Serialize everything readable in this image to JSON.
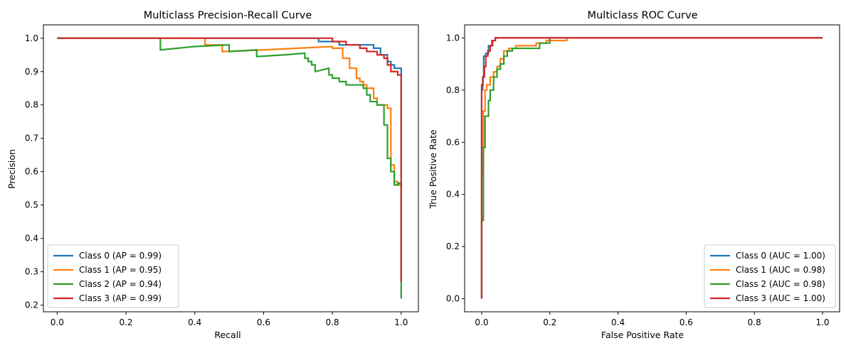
{
  "chart_data": [
    {
      "type": "line",
      "title": "Multiclass Precision-Recall Curve",
      "xlabel": "Recall",
      "ylabel": "Precision",
      "xlim": [
        -0.04,
        1.05
      ],
      "ylim": [
        0.18,
        1.04
      ],
      "xticks": [
        "0.0",
        "0.2",
        "0.4",
        "0.6",
        "0.8",
        "1.0"
      ],
      "yticks": [
        "0.2",
        "0.3",
        "0.4",
        "0.5",
        "0.6",
        "0.7",
        "0.8",
        "0.9",
        "1.0"
      ],
      "grid": false,
      "legend_position": "lower-left",
      "series": [
        {
          "name": "Class 0 (AP = 0.99)",
          "color": "#1f77b4",
          "points": [
            [
              0,
              1.0
            ],
            [
              0.76,
              1.0
            ],
            [
              0.76,
              0.99
            ],
            [
              0.82,
              0.99
            ],
            [
              0.82,
              0.98
            ],
            [
              0.92,
              0.98
            ],
            [
              0.92,
              0.97
            ],
            [
              0.94,
              0.97
            ],
            [
              0.94,
              0.95
            ],
            [
              0.96,
              0.95
            ],
            [
              0.96,
              0.93
            ],
            [
              0.97,
              0.93
            ],
            [
              0.97,
              0.92
            ],
            [
              0.98,
              0.92
            ],
            [
              0.98,
              0.91
            ],
            [
              1.0,
              0.91
            ],
            [
              1.0,
              0.27
            ]
          ]
        },
        {
          "name": "Class 1 (AP = 0.95)",
          "color": "#ff7f0e",
          "points": [
            [
              0,
              1.0
            ],
            [
              0.43,
              1.0
            ],
            [
              0.43,
              0.98
            ],
            [
              0.48,
              0.98
            ],
            [
              0.48,
              0.96
            ],
            [
              0.6,
              0.965
            ],
            [
              0.7,
              0.97
            ],
            [
              0.8,
              0.975
            ],
            [
              0.8,
              0.97
            ],
            [
              0.83,
              0.97
            ],
            [
              0.83,
              0.94
            ],
            [
              0.85,
              0.94
            ],
            [
              0.85,
              0.91
            ],
            [
              0.87,
              0.91
            ],
            [
              0.87,
              0.88
            ],
            [
              0.88,
              0.88
            ],
            [
              0.88,
              0.87
            ],
            [
              0.89,
              0.87
            ],
            [
              0.89,
              0.86
            ],
            [
              0.9,
              0.86
            ],
            [
              0.9,
              0.85
            ],
            [
              0.92,
              0.85
            ],
            [
              0.92,
              0.82
            ],
            [
              0.93,
              0.82
            ],
            [
              0.93,
              0.8
            ],
            [
              0.96,
              0.8
            ],
            [
              0.96,
              0.79
            ],
            [
              0.97,
              0.79
            ],
            [
              0.97,
              0.62
            ],
            [
              0.98,
              0.62
            ],
            [
              0.98,
              0.57
            ],
            [
              0.99,
              0.57
            ],
            [
              0.99,
              0.56
            ],
            [
              1.0,
              0.56
            ],
            [
              1.0,
              0.27
            ]
          ]
        },
        {
          "name": "Class 2 (AP = 0.94)",
          "color": "#2ca02c",
          "points": [
            [
              0,
              1.0
            ],
            [
              0.3,
              1.0
            ],
            [
              0.3,
              0.965
            ],
            [
              0.4,
              0.975
            ],
            [
              0.5,
              0.98
            ],
            [
              0.5,
              0.96
            ],
            [
              0.58,
              0.965
            ],
            [
              0.58,
              0.945
            ],
            [
              0.66,
              0.95
            ],
            [
              0.72,
              0.955
            ],
            [
              0.72,
              0.94
            ],
            [
              0.73,
              0.94
            ],
            [
              0.73,
              0.93
            ],
            [
              0.74,
              0.93
            ],
            [
              0.74,
              0.92
            ],
            [
              0.75,
              0.92
            ],
            [
              0.75,
              0.9
            ],
            [
              0.77,
              0.905
            ],
            [
              0.79,
              0.91
            ],
            [
              0.79,
              0.89
            ],
            [
              0.8,
              0.89
            ],
            [
              0.8,
              0.88
            ],
            [
              0.82,
              0.88
            ],
            [
              0.82,
              0.87
            ],
            [
              0.84,
              0.87
            ],
            [
              0.84,
              0.86
            ],
            [
              0.89,
              0.86
            ],
            [
              0.89,
              0.85
            ],
            [
              0.9,
              0.85
            ],
            [
              0.9,
              0.83
            ],
            [
              0.91,
              0.83
            ],
            [
              0.91,
              0.81
            ],
            [
              0.93,
              0.81
            ],
            [
              0.93,
              0.8
            ],
            [
              0.95,
              0.8
            ],
            [
              0.95,
              0.74
            ],
            [
              0.96,
              0.74
            ],
            [
              0.96,
              0.64
            ],
            [
              0.97,
              0.64
            ],
            [
              0.97,
              0.6
            ],
            [
              0.98,
              0.6
            ],
            [
              0.98,
              0.56
            ],
            [
              0.99,
              0.56
            ],
            [
              0.99,
              0.565
            ],
            [
              1.0,
              0.565
            ],
            [
              1.0,
              0.22
            ]
          ]
        },
        {
          "name": "Class 3 (AP = 0.99)",
          "color": "#d62728",
          "points": [
            [
              0,
              1.0
            ],
            [
              0.8,
              1.0
            ],
            [
              0.8,
              0.99
            ],
            [
              0.84,
              0.99
            ],
            [
              0.84,
              0.98
            ],
            [
              0.88,
              0.98
            ],
            [
              0.88,
              0.97
            ],
            [
              0.9,
              0.97
            ],
            [
              0.9,
              0.96
            ],
            [
              0.93,
              0.96
            ],
            [
              0.93,
              0.95
            ],
            [
              0.95,
              0.95
            ],
            [
              0.95,
              0.94
            ],
            [
              0.96,
              0.94
            ],
            [
              0.96,
              0.92
            ],
            [
              0.97,
              0.92
            ],
            [
              0.97,
              0.9
            ],
            [
              0.99,
              0.9
            ],
            [
              0.99,
              0.89
            ],
            [
              1.0,
              0.89
            ],
            [
              1.0,
              0.27
            ]
          ]
        }
      ]
    },
    {
      "type": "line",
      "title": "Multiclass ROC Curve",
      "xlabel": "False Positive Rate",
      "ylabel": "True Positive Rate",
      "xlim": [
        -0.05,
        1.05
      ],
      "ylim": [
        -0.05,
        1.05
      ],
      "xticks": [
        "0.0",
        "0.2",
        "0.4",
        "0.6",
        "0.8",
        "1.0"
      ],
      "yticks": [
        "0.0",
        "0.2",
        "0.4",
        "0.6",
        "0.8",
        "1.0"
      ],
      "grid": false,
      "legend_position": "lower-right",
      "series": [
        {
          "name": "Class 0 (AUC = 1.00)",
          "color": "#1f77b4",
          "points": [
            [
              0,
              0
            ],
            [
              0,
              0.8
            ],
            [
              0.003,
              0.8
            ],
            [
              0.003,
              0.85
            ],
            [
              0.006,
              0.85
            ],
            [
              0.006,
              0.93
            ],
            [
              0.012,
              0.93
            ],
            [
              0.012,
              0.94
            ],
            [
              0.02,
              0.94
            ],
            [
              0.02,
              0.97
            ],
            [
              0.03,
              0.97
            ],
            [
              0.03,
              0.99
            ],
            [
              0.04,
              0.99
            ],
            [
              0.04,
              1.0
            ],
            [
              1.0,
              1.0
            ]
          ]
        },
        {
          "name": "Class 1 (AUC = 0.98)",
          "color": "#ff7f0e",
          "points": [
            [
              0,
              0
            ],
            [
              0,
              0.48
            ],
            [
              0.005,
              0.48
            ],
            [
              0.005,
              0.72
            ],
            [
              0.01,
              0.72
            ],
            [
              0.01,
              0.8
            ],
            [
              0.015,
              0.8
            ],
            [
              0.015,
              0.82
            ],
            [
              0.025,
              0.82
            ],
            [
              0.025,
              0.85
            ],
            [
              0.035,
              0.85
            ],
            [
              0.035,
              0.87
            ],
            [
              0.045,
              0.87
            ],
            [
              0.045,
              0.89
            ],
            [
              0.055,
              0.89
            ],
            [
              0.055,
              0.92
            ],
            [
              0.065,
              0.92
            ],
            [
              0.065,
              0.95
            ],
            [
              0.08,
              0.95
            ],
            [
              0.08,
              0.96
            ],
            [
              0.1,
              0.96
            ],
            [
              0.1,
              0.97
            ],
            [
              0.16,
              0.97
            ],
            [
              0.16,
              0.98
            ],
            [
              0.19,
              0.98
            ],
            [
              0.19,
              0.99
            ],
            [
              0.25,
              0.99
            ],
            [
              0.25,
              1.0
            ],
            [
              1.0,
              1.0
            ]
          ]
        },
        {
          "name": "Class 2 (AUC = 0.98)",
          "color": "#2ca02c",
          "points": [
            [
              0,
              0
            ],
            [
              0,
              0.3
            ],
            [
              0.005,
              0.3
            ],
            [
              0.005,
              0.58
            ],
            [
              0.01,
              0.58
            ],
            [
              0.01,
              0.7
            ],
            [
              0.02,
              0.7
            ],
            [
              0.02,
              0.76
            ],
            [
              0.025,
              0.76
            ],
            [
              0.025,
              0.8
            ],
            [
              0.035,
              0.8
            ],
            [
              0.035,
              0.85
            ],
            [
              0.045,
              0.85
            ],
            [
              0.045,
              0.88
            ],
            [
              0.055,
              0.88
            ],
            [
              0.055,
              0.9
            ],
            [
              0.065,
              0.9
            ],
            [
              0.065,
              0.93
            ],
            [
              0.075,
              0.93
            ],
            [
              0.075,
              0.95
            ],
            [
              0.09,
              0.95
            ],
            [
              0.09,
              0.96
            ],
            [
              0.17,
              0.96
            ],
            [
              0.17,
              0.98
            ],
            [
              0.2,
              0.98
            ],
            [
              0.2,
              1.0
            ],
            [
              1.0,
              1.0
            ]
          ]
        },
        {
          "name": "Class 3 (AUC = 1.00)",
          "color": "#d62728",
          "points": [
            [
              0,
              0
            ],
            [
              0,
              0.82
            ],
            [
              0.004,
              0.82
            ],
            [
              0.004,
              0.85
            ],
            [
              0.008,
              0.85
            ],
            [
              0.008,
              0.89
            ],
            [
              0.012,
              0.89
            ],
            [
              0.012,
              0.93
            ],
            [
              0.018,
              0.93
            ],
            [
              0.018,
              0.95
            ],
            [
              0.025,
              0.95
            ],
            [
              0.025,
              0.97
            ],
            [
              0.032,
              0.97
            ],
            [
              0.032,
              0.99
            ],
            [
              0.04,
              0.99
            ],
            [
              0.04,
              1.0
            ],
            [
              1.0,
              1.0
            ]
          ]
        }
      ]
    }
  ]
}
